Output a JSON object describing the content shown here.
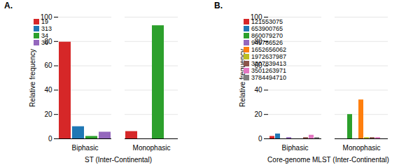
{
  "chart_data": [
    {
      "type": "bar",
      "title": "A.",
      "xlabel": "ST (Inter-Continental)",
      "ylabel": "Relative frequency",
      "categories": [
        "Biphasic",
        "Monophasic"
      ],
      "series": [
        {
          "name": "19",
          "color": "#d62728",
          "values": [
            79.5,
            6.0
          ]
        },
        {
          "name": "313",
          "color": "#1f77b4",
          "values": [
            10.0,
            0.0
          ]
        },
        {
          "name": "34",
          "color": "#2ca02c",
          "values": [
            2.0,
            93.0
          ]
        },
        {
          "name": "36",
          "color": "#9467bd",
          "values": [
            5.5,
            0.0
          ]
        }
      ],
      "ylim": [
        0,
        100
      ],
      "yticks": [
        0,
        20,
        40,
        60,
        80,
        100
      ],
      "grid": true,
      "legend": "upper left"
    },
    {
      "type": "bar",
      "title": "B.",
      "xlabel": "Core-genome MLST (Inter-Continental)",
      "ylabel": "Relative frequency",
      "categories": [
        "Biphasic",
        "Monophasic"
      ],
      "series": [
        {
          "name": "121553075",
          "color": "#d62728",
          "values": [
            2.0,
            0.0
          ]
        },
        {
          "name": "653900765",
          "color": "#1f77b4",
          "values": [
            4.0,
            0.0
          ]
        },
        {
          "name": "860079270",
          "color": "#2ca02c",
          "values": [
            0.0,
            20.0
          ]
        },
        {
          "name": "945786526",
          "color": "#9467bd",
          "values": [
            1.0,
            0.0
          ]
        },
        {
          "name": "1652656062",
          "color": "#ff7f0e",
          "values": [
            0.0,
            32.0
          ]
        },
        {
          "name": "1972637987",
          "color": "#bcbd22",
          "values": [
            0.0,
            1.0
          ]
        },
        {
          "name": "3307839413",
          "color": "#8c564b",
          "values": [
            1.0,
            1.0
          ]
        },
        {
          "name": "3501263971",
          "color": "#e377c2",
          "values": [
            3.0,
            1.0
          ]
        },
        {
          "name": "3784494710",
          "color": "#7f7f7f",
          "values": [
            1.0,
            0.0
          ]
        }
      ],
      "ylim": [
        0,
        100
      ],
      "yticks": [
        0,
        20,
        40,
        60,
        80,
        100
      ],
      "grid": true,
      "legend": "upper left"
    }
  ]
}
